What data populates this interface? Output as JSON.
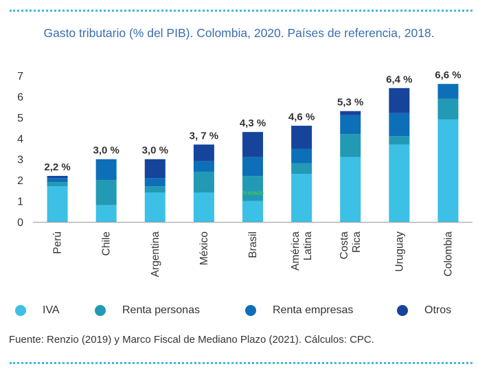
{
  "chart_data": {
    "type": "bar",
    "stacked": true,
    "title": "Gasto tributario (% del PIB). Colombia, 2020. Países de referencia, 2018.",
    "categories": [
      "Perú",
      "Chile",
      "Argentina",
      "México",
      "Brasil",
      "América Latina",
      "Costa Rica",
      "Uruguay",
      "Colombia"
    ],
    "totals_labels": [
      "2,2 %",
      "3,0 %",
      "3,0 %",
      "3, 7 %",
      "4,3 %",
      "4,6 %",
      "5,3 %",
      "6,4 %",
      "6,6 %"
    ],
    "series": [
      {
        "name": "IVA",
        "color": "#3cc0e6",
        "values": [
          1.7,
          0.8,
          1.4,
          1.4,
          1.0,
          2.3,
          3.1,
          3.7,
          4.9
        ]
      },
      {
        "name": "Renta personas",
        "color": "#2299b5",
        "values": [
          0.2,
          1.2,
          0.3,
          1.0,
          1.2,
          0.5,
          1.1,
          0.4,
          1.0
        ]
      },
      {
        "name": "Renta empresas",
        "color": "#0d6fb8",
        "values": [
          0.2,
          1.0,
          0.4,
          0.5,
          0.9,
          0.7,
          0.9,
          1.1,
          0.7
        ]
      },
      {
        "name": "Otros",
        "color": "#16449a",
        "values": [
          0.1,
          0.0,
          0.9,
          0.8,
          1.2,
          1.1,
          0.2,
          1.2,
          0.0
        ]
      }
    ],
    "ylim": [
      0,
      7
    ],
    "yticks": [
      "0",
      "1",
      "2",
      "3",
      "4",
      "5",
      "6",
      "7"
    ],
    "grid": false,
    "legend_position": "bottom",
    "annotation": "trazado"
  },
  "source": "Fuente: Renzio (2019) y Marco Fiscal de Mediano Plazo (2021). Cálculos: CPC."
}
